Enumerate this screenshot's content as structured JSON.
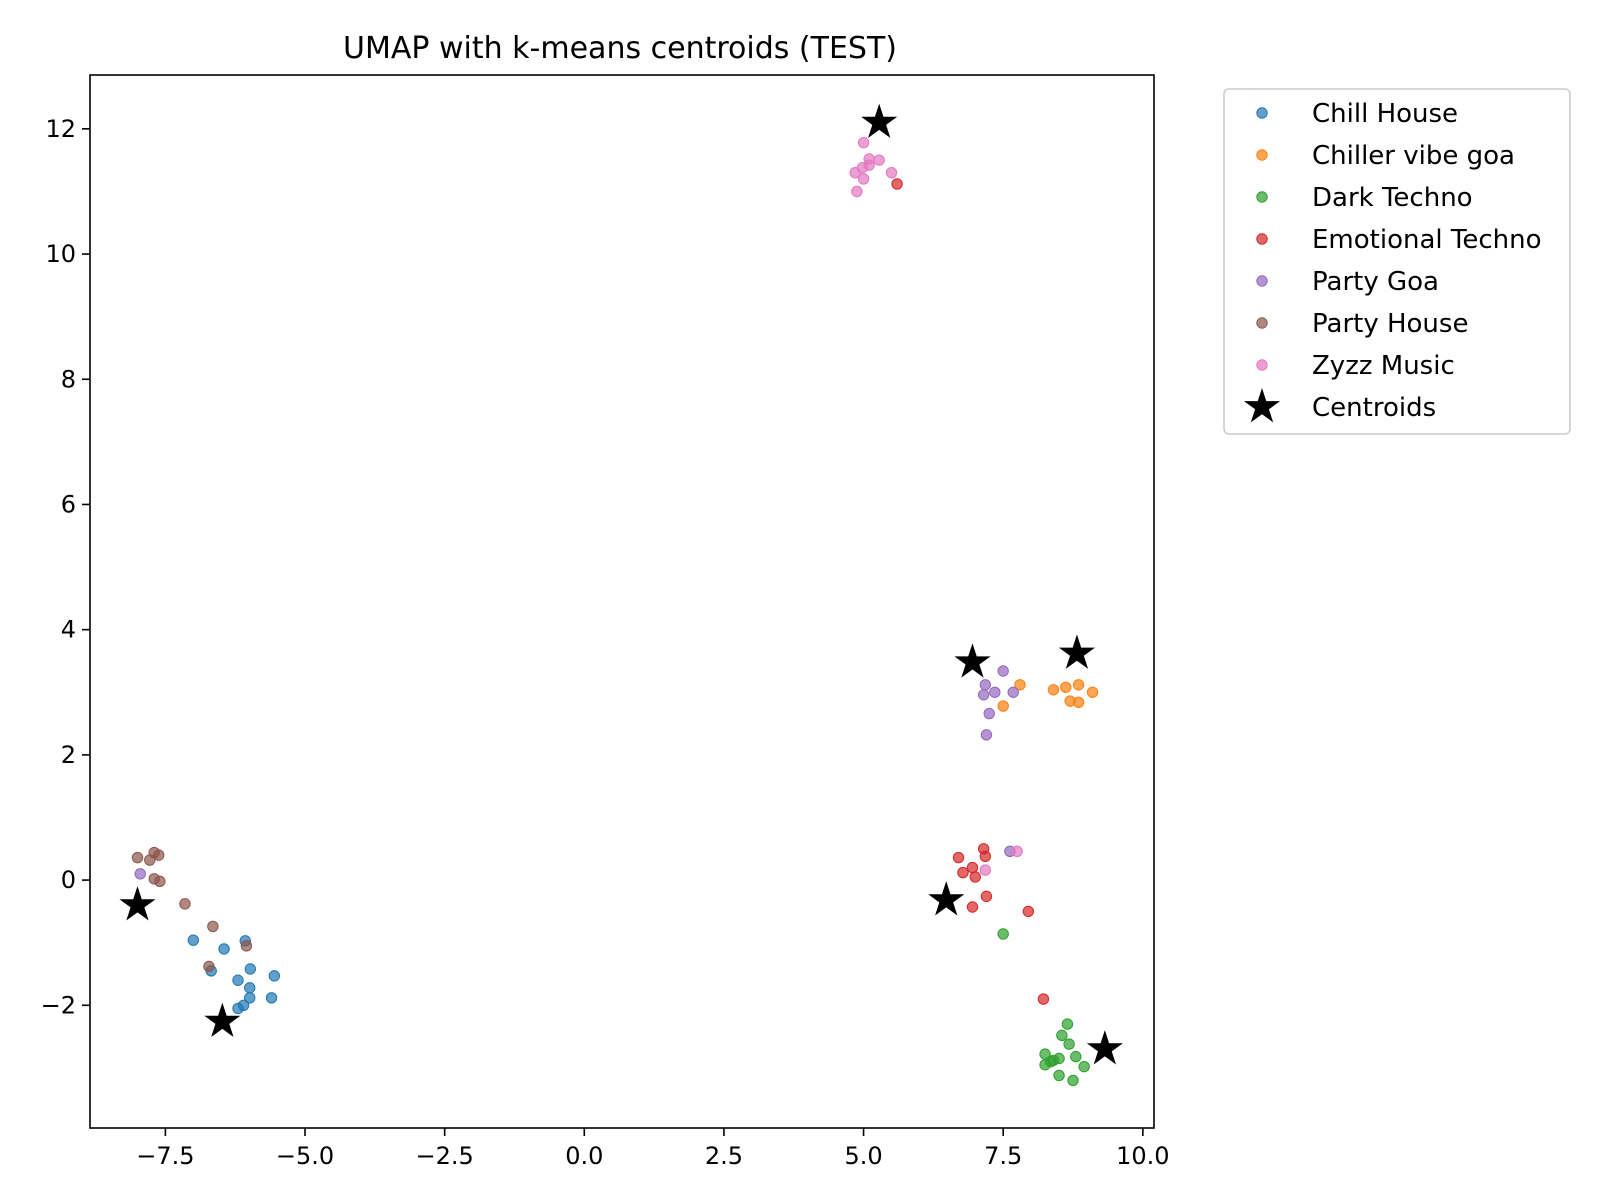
{
  "chart_data": {
    "type": "scatter",
    "title": "UMAP with k-means centroids (TEST)",
    "xlabel": "",
    "ylabel": "",
    "xlim": [
      -8.85,
      10.2
    ],
    "ylim": [
      -3.96,
      12.86
    ],
    "xticks": [
      -7.5,
      -5.0,
      -2.5,
      0.0,
      2.5,
      5.0,
      7.5,
      10.0
    ],
    "xtick_labels": [
      "−7.5",
      "−5.0",
      "−2.5",
      "0.0",
      "2.5",
      "5.0",
      "7.5",
      "10.0"
    ],
    "yticks": [
      -2,
      0,
      2,
      4,
      6,
      8,
      10,
      12
    ],
    "ytick_labels": [
      "−2",
      "0",
      "2",
      "4",
      "6",
      "8",
      "10",
      "12"
    ],
    "grid": false,
    "legend_position": "outside-upper-right",
    "series": [
      {
        "name": "Chill House",
        "color": "#1f77b4",
        "points": [
          [
            -7.0,
            -0.96
          ],
          [
            -6.45,
            -1.1
          ],
          [
            -6.68,
            -1.45
          ],
          [
            -6.2,
            -1.6
          ],
          [
            -6.07,
            -0.97
          ],
          [
            -5.98,
            -1.42
          ],
          [
            -5.55,
            -1.53
          ],
          [
            -5.99,
            -1.72
          ],
          [
            -5.99,
            -1.88
          ],
          [
            -6.1,
            -2.0
          ],
          [
            -6.2,
            -2.05
          ],
          [
            -5.6,
            -1.88
          ]
        ]
      },
      {
        "name": "Chiller vibe goa",
        "color": "#ff7f0e",
        "points": [
          [
            7.8,
            3.12
          ],
          [
            8.4,
            3.04
          ],
          [
            8.62,
            3.08
          ],
          [
            8.85,
            3.12
          ],
          [
            9.1,
            3.0
          ],
          [
            8.7,
            2.86
          ],
          [
            8.85,
            2.84
          ],
          [
            7.5,
            2.78
          ]
        ]
      },
      {
        "name": "Dark Techno",
        "color": "#2ca02c",
        "points": [
          [
            7.5,
            -0.86
          ],
          [
            8.65,
            -2.3
          ],
          [
            8.55,
            -2.48
          ],
          [
            8.68,
            -2.62
          ],
          [
            8.25,
            -2.78
          ],
          [
            8.8,
            -2.82
          ],
          [
            8.5,
            -2.85
          ],
          [
            8.4,
            -2.88
          ],
          [
            8.35,
            -2.9
          ],
          [
            8.25,
            -2.95
          ],
          [
            8.95,
            -2.98
          ],
          [
            8.5,
            -3.12
          ],
          [
            8.75,
            -3.2
          ]
        ]
      },
      {
        "name": "Emotional Techno",
        "color": "#d62728",
        "points": [
          [
            5.6,
            11.12
          ],
          [
            7.15,
            0.5
          ],
          [
            7.18,
            0.38
          ],
          [
            6.7,
            0.36
          ],
          [
            6.95,
            0.2
          ],
          [
            6.78,
            0.12
          ],
          [
            7.0,
            0.05
          ],
          [
            7.2,
            -0.26
          ],
          [
            6.95,
            -0.43
          ],
          [
            7.95,
            -0.5
          ],
          [
            8.22,
            -1.9
          ]
        ]
      },
      {
        "name": "Party Goa",
        "color": "#9467bd",
        "points": [
          [
            7.5,
            3.34
          ],
          [
            7.18,
            3.12
          ],
          [
            7.35,
            3.0
          ],
          [
            7.68,
            3.0
          ],
          [
            7.15,
            2.96
          ],
          [
            7.25,
            2.66
          ],
          [
            7.2,
            2.32
          ],
          [
            7.62,
            0.46
          ],
          [
            -7.95,
            0.1
          ]
        ]
      },
      {
        "name": "Party House",
        "color": "#8c564b",
        "points": [
          [
            -8.0,
            0.36
          ],
          [
            -7.7,
            0.44
          ],
          [
            -7.62,
            0.4
          ],
          [
            -7.78,
            0.32
          ],
          [
            -7.7,
            0.02
          ],
          [
            -7.6,
            -0.02
          ],
          [
            -7.15,
            -0.38
          ],
          [
            -6.65,
            -0.74
          ],
          [
            -6.05,
            -1.05
          ],
          [
            -6.72,
            -1.38
          ]
        ]
      },
      {
        "name": "Zyzz Music",
        "color": "#e377c2",
        "points": [
          [
            5.0,
            11.78
          ],
          [
            5.1,
            11.52
          ],
          [
            5.28,
            11.5
          ],
          [
            4.98,
            11.38
          ],
          [
            5.1,
            11.42
          ],
          [
            4.85,
            11.3
          ],
          [
            5.5,
            11.3
          ],
          [
            5.0,
            11.2
          ],
          [
            4.88,
            11.0
          ],
          [
            7.75,
            0.46
          ],
          [
            7.18,
            0.16
          ]
        ]
      }
    ],
    "centroids": {
      "name": "Centroids",
      "color": "#000000",
      "points": [
        [
          5.28,
          12.1
        ],
        [
          6.95,
          3.48
        ],
        [
          8.82,
          3.62
        ],
        [
          -8.0,
          -0.4
        ],
        [
          6.48,
          -0.32
        ],
        [
          -6.48,
          -2.26
        ],
        [
          9.32,
          -2.7
        ]
      ]
    }
  }
}
